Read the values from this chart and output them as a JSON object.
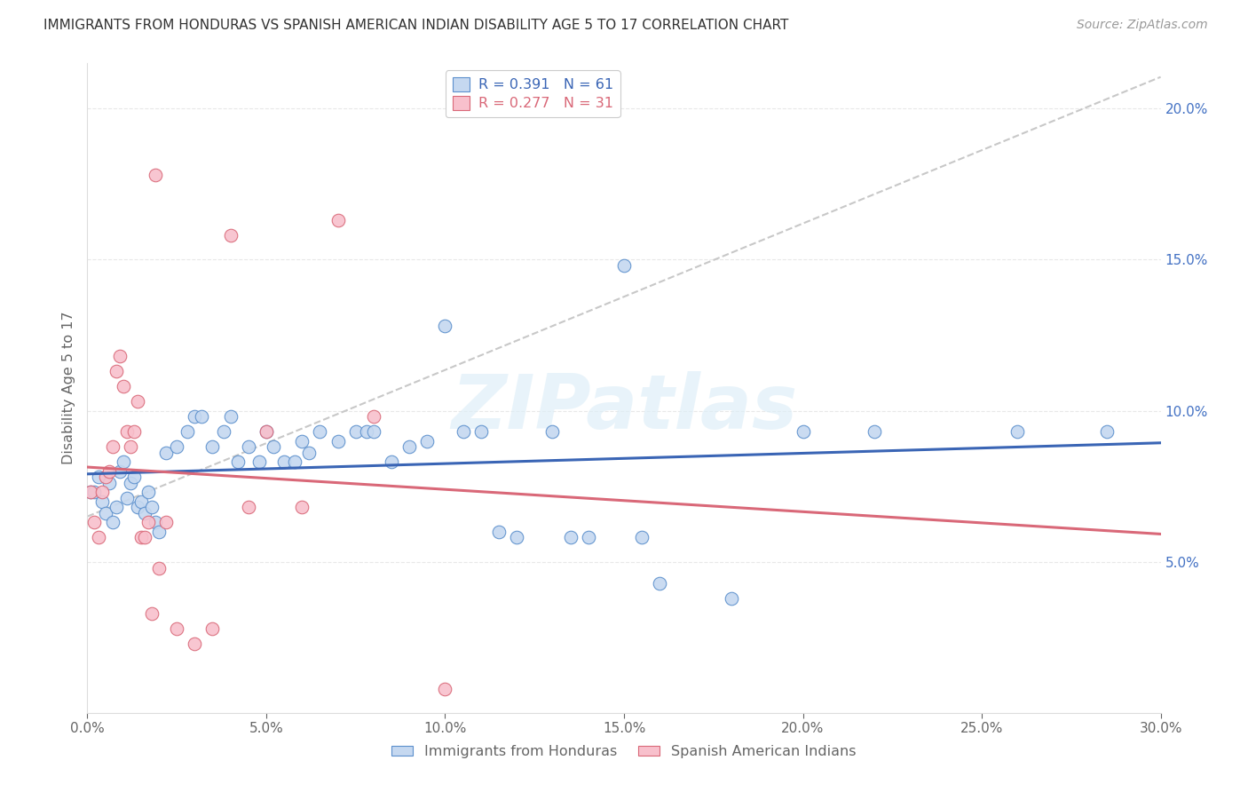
{
  "title": "IMMIGRANTS FROM HONDURAS VS SPANISH AMERICAN INDIAN DISABILITY AGE 5 TO 17 CORRELATION CHART",
  "source": "Source: ZipAtlas.com",
  "ylabel": "Disability Age 5 to 17",
  "xlim": [
    0.0,
    0.3
  ],
  "ylim": [
    0.0,
    0.215
  ],
  "blue_color": "#c5d8f0",
  "blue_edge_color": "#5b8fcc",
  "pink_color": "#f8c0cc",
  "pink_edge_color": "#d96878",
  "blue_line_color": "#3a65b5",
  "pink_line_color": "#d96878",
  "gray_dash_color": "#c8c8c8",
  "watermark": "ZIPatlas",
  "watermark_color": "#ddeef8",
  "r_blue": 0.391,
  "n_blue": 61,
  "r_pink": 0.277,
  "n_pink": 31,
  "right_axis_color": "#4472c4",
  "grid_color": "#e8e8e8",
  "title_color": "#333333",
  "label_color": "#666666",
  "source_color": "#999999",
  "legend_label_blue": "Immigrants from Honduras",
  "legend_label_pink": "Spanish American Indians",
  "blue_x": [
    0.001,
    0.002,
    0.003,
    0.004,
    0.005,
    0.006,
    0.007,
    0.008,
    0.009,
    0.01,
    0.011,
    0.012,
    0.013,
    0.014,
    0.015,
    0.016,
    0.017,
    0.018,
    0.019,
    0.02,
    0.022,
    0.025,
    0.028,
    0.03,
    0.032,
    0.035,
    0.038,
    0.04,
    0.042,
    0.045,
    0.048,
    0.05,
    0.052,
    0.055,
    0.058,
    0.06,
    0.062,
    0.065,
    0.07,
    0.075,
    0.078,
    0.08,
    0.085,
    0.09,
    0.095,
    0.1,
    0.105,
    0.11,
    0.115,
    0.12,
    0.13,
    0.135,
    0.14,
    0.15,
    0.155,
    0.16,
    0.18,
    0.2,
    0.22,
    0.26,
    0.285
  ],
  "blue_y": [
    0.073,
    0.073,
    0.078,
    0.07,
    0.066,
    0.076,
    0.063,
    0.068,
    0.08,
    0.083,
    0.071,
    0.076,
    0.078,
    0.068,
    0.07,
    0.066,
    0.073,
    0.068,
    0.063,
    0.06,
    0.086,
    0.088,
    0.093,
    0.098,
    0.098,
    0.088,
    0.093,
    0.098,
    0.083,
    0.088,
    0.083,
    0.093,
    0.088,
    0.083,
    0.083,
    0.09,
    0.086,
    0.093,
    0.09,
    0.093,
    0.093,
    0.093,
    0.083,
    0.088,
    0.09,
    0.128,
    0.093,
    0.093,
    0.06,
    0.058,
    0.093,
    0.058,
    0.058,
    0.148,
    0.058,
    0.043,
    0.038,
    0.093,
    0.093,
    0.093,
    0.093
  ],
  "pink_x": [
    0.001,
    0.002,
    0.003,
    0.004,
    0.005,
    0.006,
    0.007,
    0.008,
    0.009,
    0.01,
    0.011,
    0.012,
    0.013,
    0.014,
    0.015,
    0.016,
    0.017,
    0.018,
    0.019,
    0.02,
    0.022,
    0.025,
    0.03,
    0.035,
    0.04,
    0.045,
    0.05,
    0.06,
    0.07,
    0.08,
    0.1
  ],
  "pink_y": [
    0.073,
    0.063,
    0.058,
    0.073,
    0.078,
    0.08,
    0.088,
    0.113,
    0.118,
    0.108,
    0.093,
    0.088,
    0.093,
    0.103,
    0.058,
    0.058,
    0.063,
    0.033,
    0.178,
    0.048,
    0.063,
    0.028,
    0.023,
    0.028,
    0.158,
    0.068,
    0.093,
    0.068,
    0.163,
    0.098,
    0.008
  ]
}
